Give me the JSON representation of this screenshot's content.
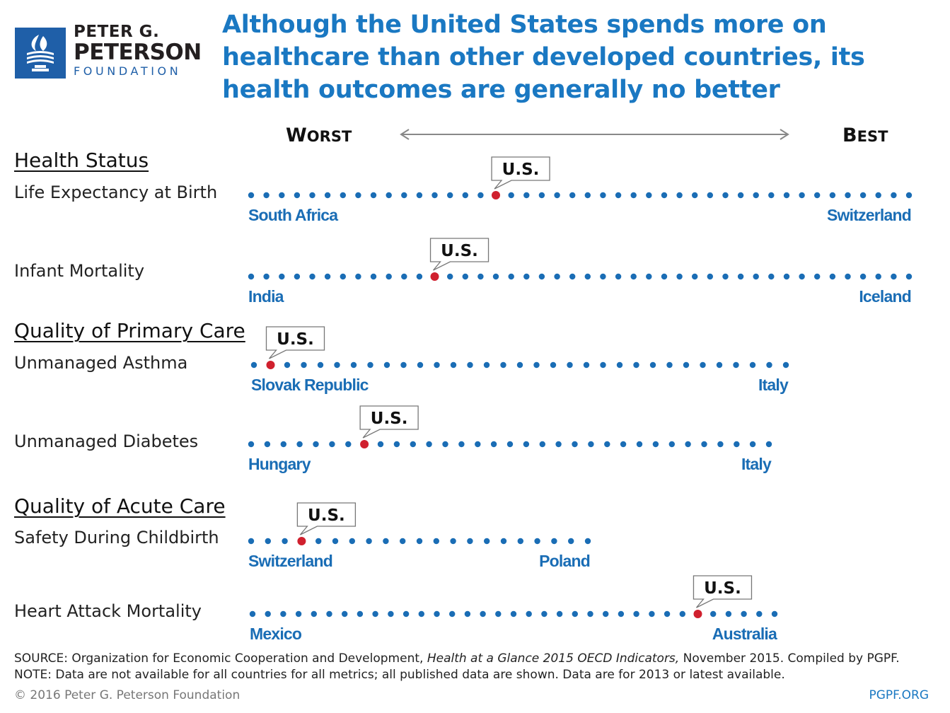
{
  "header": {
    "org_line1": "PETER G.",
    "org_line2": "PETERSON",
    "org_line3": "FOUNDATION",
    "title": "Although the United States spends more on healthcare than other developed countries, its health outcomes are generally no better"
  },
  "axis": {
    "worst": {
      "first": "W",
      "rest": "ORST"
    },
    "best": {
      "first": "B",
      "rest": "EST"
    }
  },
  "sections": {
    "health_status": "Health Status",
    "primary_care": "Quality of Primary Care",
    "acute_care": "Quality of Acute Care"
  },
  "chart_data": {
    "type": "dot_strip",
    "title": "Although the United States spends more on healthcare than other developed countries, its health outcomes are generally no better",
    "direction": "Worst (left) to Best (right)",
    "highlight_label": "U.S.",
    "colors": {
      "dot": "#1a6db5",
      "highlight": "#d0202e",
      "country": "#1a6db5"
    },
    "rows": [
      {
        "section": "Health Status",
        "metric": "Life Expectancy at Birth",
        "count": 44,
        "us_rank": 17,
        "worst": "South Africa",
        "best": "Switzerland"
      },
      {
        "section": "Health Status",
        "metric": "Infant Mortality",
        "count": 44,
        "us_rank": 13,
        "worst": "India",
        "best": "Iceland"
      },
      {
        "section": "Quality of Primary Care",
        "metric": "Unmanaged Asthma",
        "count": 33,
        "us_rank": 2,
        "worst": "Slovak Republic",
        "best": "Italy"
      },
      {
        "section": "Quality of Primary Care",
        "metric": "Unmanaged Diabetes",
        "count": 33,
        "us_rank": 8,
        "worst": "Hungary",
        "best": "Italy"
      },
      {
        "section": "Quality of Acute Care",
        "metric": "Safety During Childbirth",
        "count": 21,
        "us_rank": 4,
        "worst": "Switzerland",
        "best": "Poland"
      },
      {
        "section": "Quality of Acute Care",
        "metric": "Heart Attack Mortality",
        "count": 35,
        "us_rank": 30,
        "worst": "Mexico",
        "best": "Australia"
      }
    ]
  },
  "footer": {
    "source_prefix": "SOURCE: Organization for Economic Cooperation and Development, ",
    "source_title": "Health at a Glance 2015 OECD Indicators,",
    "source_suffix": " November 2015. Compiled by PGPF.",
    "note": "NOTE: Data are not available for all countries for all metrics; all published data are shown. Data are for 2013 or latest available.",
    "copyright": "© 2016 Peter G. Peterson Foundation",
    "site": "PGPF.ORG"
  }
}
